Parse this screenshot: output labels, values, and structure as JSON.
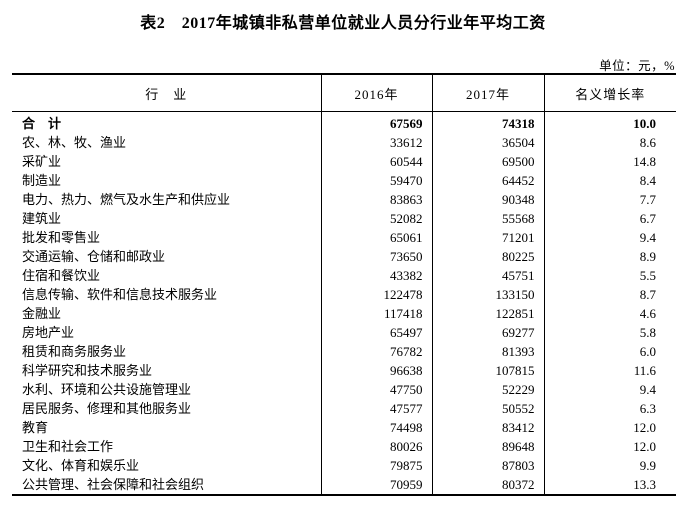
{
  "title": "表2　2017年城镇非私营单位就业人员分行业年平均工资",
  "unit_note": "单位：元，%",
  "table": {
    "headers": {
      "industry": "行　业",
      "year2016": "2016年",
      "year2017": "2017年",
      "growth": "名义增长率"
    },
    "rows": [
      {
        "industry": "合　计",
        "y2016": "67569",
        "y2017": "74318",
        "growth": "10.0",
        "is_total": true
      },
      {
        "industry": "农、林、牧、渔业",
        "y2016": "33612",
        "y2017": "36504",
        "growth": "8.6",
        "is_total": false
      },
      {
        "industry": "采矿业",
        "y2016": "60544",
        "y2017": "69500",
        "growth": "14.8",
        "is_total": false
      },
      {
        "industry": "制造业",
        "y2016": "59470",
        "y2017": "64452",
        "growth": "8.4",
        "is_total": false
      },
      {
        "industry": "电力、热力、燃气及水生产和供应业",
        "y2016": "83863",
        "y2017": "90348",
        "growth": "7.7",
        "is_total": false
      },
      {
        "industry": "建筑业",
        "y2016": "52082",
        "y2017": "55568",
        "growth": "6.7",
        "is_total": false
      },
      {
        "industry": "批发和零售业",
        "y2016": "65061",
        "y2017": "71201",
        "growth": "9.4",
        "is_total": false
      },
      {
        "industry": "交通运输、仓储和邮政业",
        "y2016": "73650",
        "y2017": "80225",
        "growth": "8.9",
        "is_total": false
      },
      {
        "industry": "住宿和餐饮业",
        "y2016": "43382",
        "y2017": "45751",
        "growth": "5.5",
        "is_total": false
      },
      {
        "industry": "信息传输、软件和信息技术服务业",
        "y2016": "122478",
        "y2017": "133150",
        "growth": "8.7",
        "is_total": false
      },
      {
        "industry": "金融业",
        "y2016": "117418",
        "y2017": "122851",
        "growth": "4.6",
        "is_total": false
      },
      {
        "industry": "房地产业",
        "y2016": "65497",
        "y2017": "69277",
        "growth": "5.8",
        "is_total": false
      },
      {
        "industry": "租赁和商务服务业",
        "y2016": "76782",
        "y2017": "81393",
        "growth": "6.0",
        "is_total": false
      },
      {
        "industry": "科学研究和技术服务业",
        "y2016": "96638",
        "y2017": "107815",
        "growth": "11.6",
        "is_total": false
      },
      {
        "industry": "水利、环境和公共设施管理业",
        "y2016": "47750",
        "y2017": "52229",
        "growth": "9.4",
        "is_total": false
      },
      {
        "industry": "居民服务、修理和其他服务业",
        "y2016": "47577",
        "y2017": "50552",
        "growth": "6.3",
        "is_total": false
      },
      {
        "industry": "教育",
        "y2016": "74498",
        "y2017": "83412",
        "growth": "12.0",
        "is_total": false
      },
      {
        "industry": "卫生和社会工作",
        "y2016": "80026",
        "y2017": "89648",
        "growth": "12.0",
        "is_total": false
      },
      {
        "industry": "文化、体育和娱乐业",
        "y2016": "79875",
        "y2017": "87803",
        "growth": "9.9",
        "is_total": false
      },
      {
        "industry": "公共管理、社会保障和社会组织",
        "y2016": "70959",
        "y2017": "80372",
        "growth": "13.3",
        "is_total": false
      }
    ]
  },
  "colors": {
    "text": "#000000",
    "border": "#000000",
    "background": "#ffffff"
  }
}
